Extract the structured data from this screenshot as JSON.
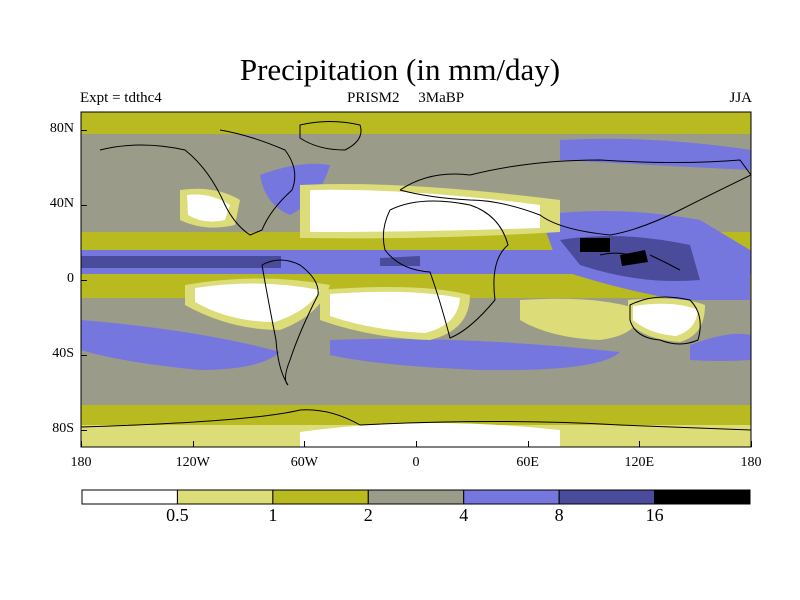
{
  "title": "Precipitation (in mm/day)",
  "header": {
    "left": "Expt = tdthc4",
    "center": "PRISM2     3MaBP",
    "right": "JJA"
  },
  "lat_labels": [
    "80N",
    "40N",
    "0",
    "40S",
    "80S"
  ],
  "lon_labels": [
    "180",
    "120W",
    "60W",
    "0",
    "60E",
    "120E",
    "180"
  ],
  "colorbar": {
    "colors": [
      "#ffffff",
      "#dcdc78",
      "#b9b920",
      "#9b9b8a",
      "#7676df",
      "#4b4b9c",
      "#000000"
    ],
    "labels": [
      "0.5",
      "1",
      "2",
      "4",
      "8",
      "16"
    ]
  }
}
